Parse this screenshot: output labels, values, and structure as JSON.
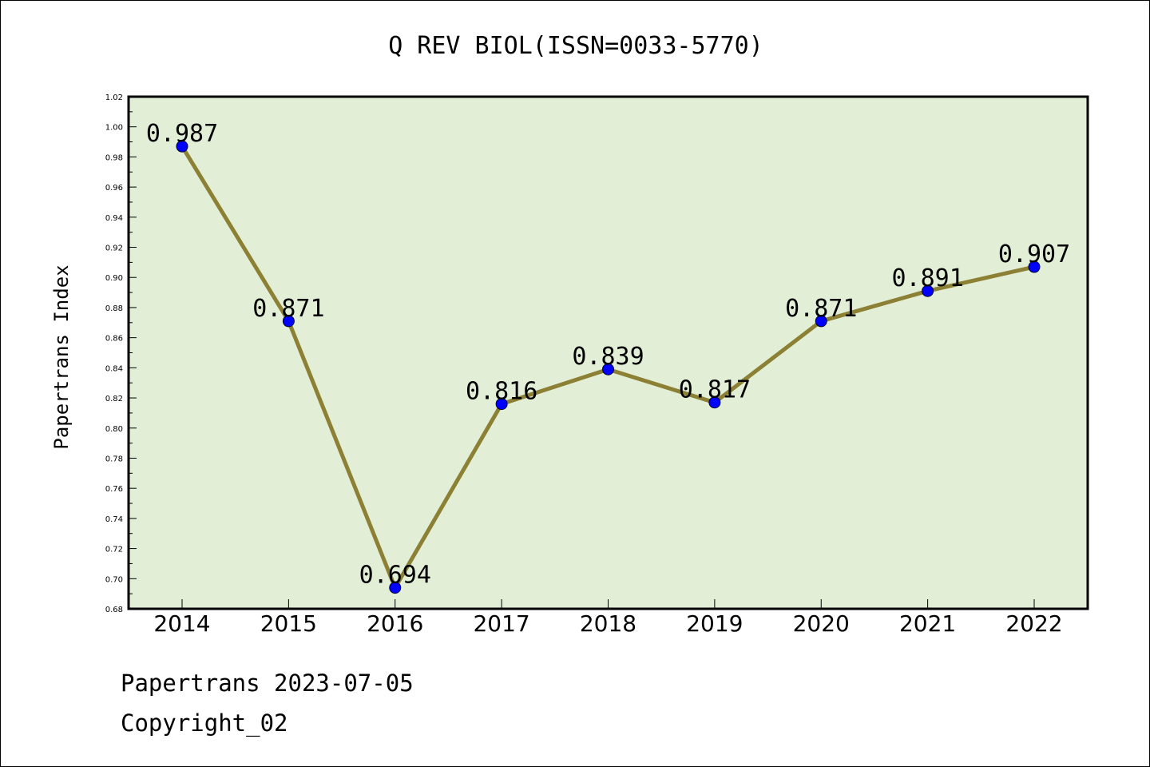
{
  "chart_data": {
    "type": "line",
    "title": "Q REV BIOL(ISSN=0033-5770)",
    "xlabel": "",
    "ylabel": "Papertrans Index",
    "categories": [
      "2014",
      "2015",
      "2016",
      "2017",
      "2018",
      "2019",
      "2020",
      "2021",
      "2022"
    ],
    "values": [
      0.987,
      0.871,
      0.694,
      0.816,
      0.839,
      0.817,
      0.871,
      0.891,
      0.907
    ],
    "data_labels": [
      "0.987",
      "0.871",
      "0.694",
      "0.816",
      "0.839",
      "0.817",
      "0.871",
      "0.891",
      "0.907"
    ],
    "ylim": [
      0.68,
      1.02
    ],
    "yticks": [
      "0.68",
      "0.70",
      "0.72",
      "0.74",
      "0.76",
      "0.78",
      "0.80",
      "0.82",
      "0.84",
      "0.86",
      "0.88",
      "0.90",
      "0.92",
      "0.94",
      "0.96",
      "0.98",
      "1.00",
      "1.02"
    ],
    "grid": false,
    "legend": "none",
    "colors": {
      "plot_background": "#e2efd6",
      "line": "#8b8033",
      "marker": "#0000ff",
      "axis": "#000000"
    }
  },
  "footer": {
    "line1": "Papertrans 2023-07-05",
    "line2": "Copyright_02"
  }
}
